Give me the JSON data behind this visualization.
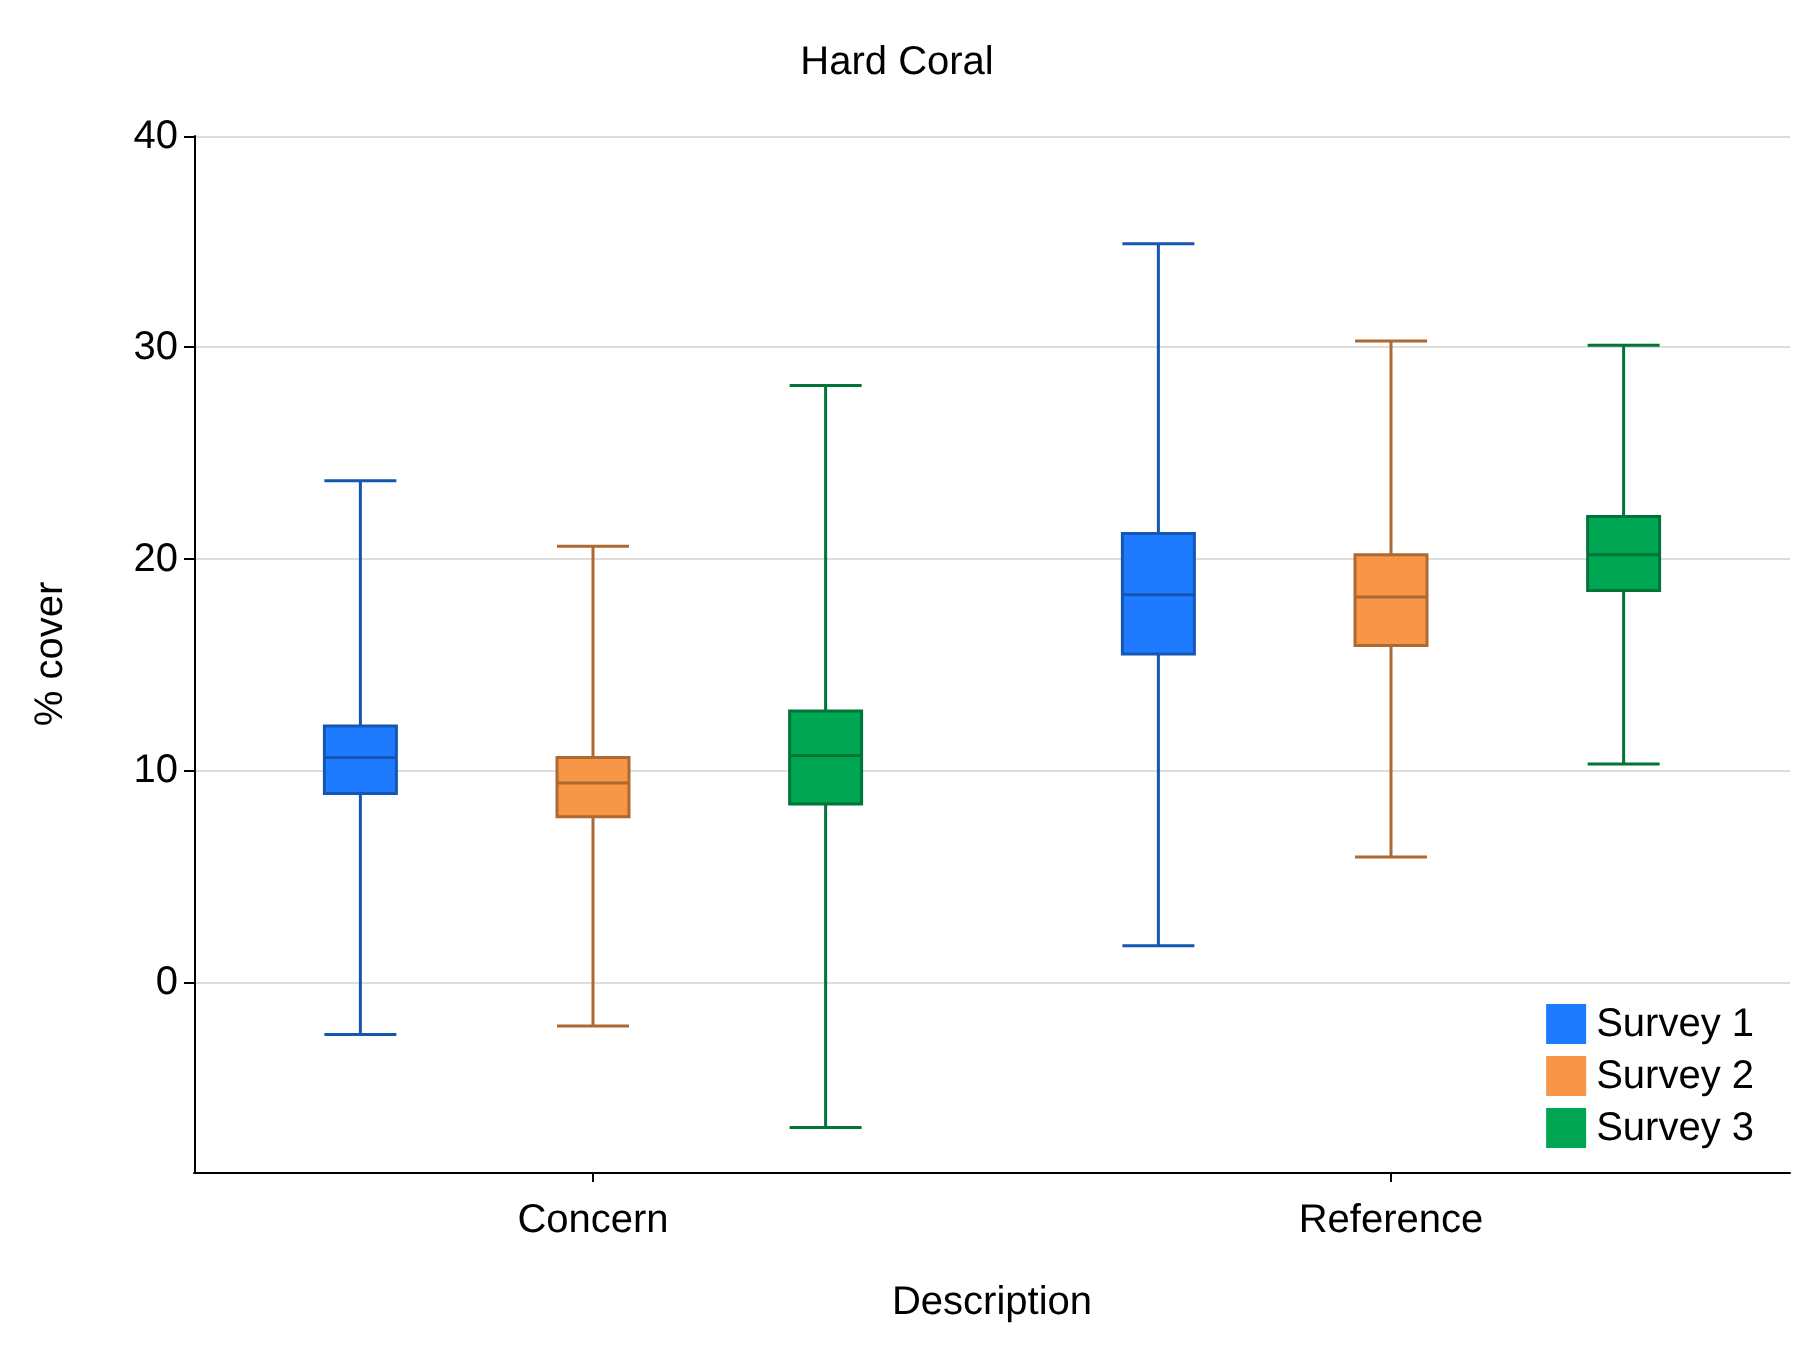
{
  "chart_data": {
    "type": "box",
    "title": "Hard Coral",
    "xlabel": "Description",
    "ylabel": "% cover",
    "categories": [
      "Concern",
      "Reference"
    ],
    "ylim": [
      -9,
      40
    ],
    "yticks": [
      0,
      10,
      20,
      30,
      40
    ],
    "grid": "y",
    "legend": "bottom right",
    "series": [
      {
        "name": "Survey 1",
        "color": "#1e7bff",
        "boxes": [
          {
            "low": -2.5,
            "q1": 8.9,
            "median": 10.6,
            "q3": 12.1,
            "high": 23.7
          },
          {
            "low": 1.7,
            "q1": 15.5,
            "median": 18.3,
            "q3": 21.2,
            "high": 34.9
          }
        ]
      },
      {
        "name": "Survey 2",
        "color": "#f79646",
        "boxes": [
          {
            "low": -2.1,
            "q1": 7.8,
            "median": 9.4,
            "q3": 10.6,
            "high": 20.6
          },
          {
            "low": 5.9,
            "q1": 15.9,
            "median": 18.2,
            "q3": 20.2,
            "high": 30.3
          }
        ]
      },
      {
        "name": "Survey 3",
        "color": "#00a651",
        "boxes": [
          {
            "low": -6.9,
            "q1": 8.4,
            "median": 10.7,
            "q3": 12.8,
            "high": 28.2
          },
          {
            "low": 10.3,
            "q1": 18.5,
            "median": 20.2,
            "q3": 22.0,
            "high": 30.1
          }
        ]
      }
    ]
  }
}
